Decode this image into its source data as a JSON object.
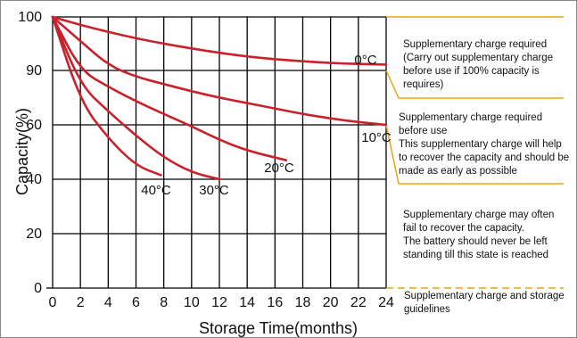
{
  "chart_data": {
    "type": "line",
    "xlabel": "Storage  Time(months)",
    "ylabel": "Capacity(%)",
    "xlim": [
      0,
      24
    ],
    "ylim": [
      0,
      100
    ],
    "x_ticks": [
      0,
      2,
      4,
      6,
      8,
      10,
      12,
      14,
      16,
      18,
      20,
      22,
      24
    ],
    "y_ticks": [
      0,
      20,
      40,
      60,
      90,
      100
    ],
    "grid": true,
    "series": [
      {
        "name": "0°C",
        "color": "#c8232c",
        "x": [
          0,
          2,
          4,
          6,
          8,
          10,
          12,
          14,
          16,
          18,
          20,
          22,
          24
        ],
        "y": [
          100,
          98.5,
          97.2,
          96,
          95,
          94.1,
          93.3,
          92.6,
          92.1,
          91.7,
          91.4,
          91.2,
          91.1
        ]
      },
      {
        "name": "10°C",
        "color": "#c8232c",
        "x": [
          0,
          2,
          4,
          6,
          8,
          10,
          12,
          14,
          16,
          18,
          20,
          22,
          24
        ],
        "y": [
          100,
          95.5,
          91,
          86.5,
          82.5,
          78.5,
          75,
          72,
          69,
          66,
          63.5,
          61.5,
          60
        ]
      },
      {
        "name": "20°C",
        "color": "#c8232c",
        "x": [
          0,
          2,
          4,
          6,
          8,
          10,
          12,
          14,
          16.8
        ],
        "y": [
          100,
          90,
          81,
          73,
          66,
          59.5,
          54.5,
          50.5,
          47
        ]
      },
      {
        "name": "30°C",
        "color": "#c8232c",
        "x": [
          0,
          2,
          4,
          6,
          8,
          10,
          12
        ],
        "y": [
          100,
          82,
          67.5,
          56,
          48,
          42.5,
          40
        ]
      },
      {
        "name": "40°C",
        "color": "#c8232c",
        "x": [
          0,
          2,
          4,
          6,
          7.8
        ],
        "y": [
          100,
          73,
          55,
          45,
          41.5
        ]
      }
    ],
    "annotations": [
      "Supplementary charge required\n(Carry out supplementary charge before use if 100% capacity is requires)",
      "Supplementary charge required before use\nThis supplementary charge will help to recover the capacity and should be made as early as possible",
      "Supplementary charge may often fail to recover the capacity.\nThe battery should never be left standing till this state is reached",
      "Supplementary charge and storage guidelines"
    ],
    "annotation_line_color": "#e8a317"
  }
}
